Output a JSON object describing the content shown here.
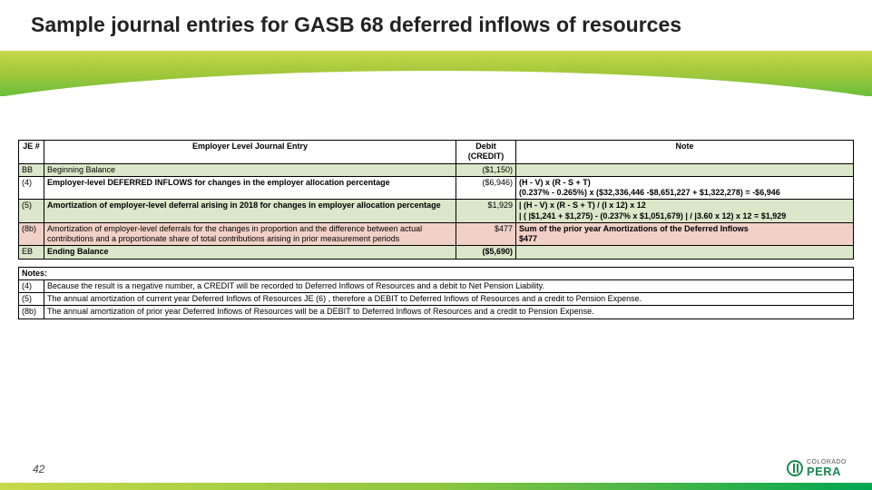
{
  "title": "Sample journal entries for GASB 68 deferred inflows of resources",
  "page_number": "42",
  "logo": {
    "line1": "COLORADO",
    "line2": "PERA"
  },
  "colors": {
    "row_green": "#dbe7c8",
    "row_peach": "#f1d1c7",
    "band_top": "#c6d94a",
    "band_bottom": "#6bbf3a",
    "logo_green": "#1a8a53"
  },
  "journal": {
    "headers": {
      "je": "JE #",
      "desc": "Employer Level Journal Entry",
      "amt": "Debit (CREDIT)",
      "note": "Note"
    },
    "rows": [
      {
        "je": "BB",
        "desc": "Beginning Balance",
        "amt": "($1,150)",
        "note": ""
      },
      {
        "je": "(4)",
        "desc": "Employer-level DEFERRED INFLOWS for changes in the employer allocation percentage",
        "amt": "($6,946)",
        "note": "(H - V) x (R - S + T)\n(0.237% - 0.265%) x ($32,336,446 -$8,651,227 + $1,322,278) = -$6,946"
      },
      {
        "je": "(5)",
        "desc": "Amortization of employer-level deferral arising in 2018 for changes in employer allocation percentage",
        "amt": "$1,929",
        "note": "| (H - V) x (R - S + T)  / (I x 12)  x 12\n| ( |$1,241 + $1,275) - (0.237% x $1,051,679) | / |3.60 x 12) x 12 = $1,929"
      },
      {
        "je": "(8b)",
        "desc": "Amortization of employer-level deferrals for the changes in proportion and the difference between actual contributions and a proportionate share of total contributions arising in prior measurement periods",
        "amt": "$477",
        "note": "Sum of the prior year Amortizations of the Deferred Inflows\n$477"
      },
      {
        "je": "EB",
        "desc": "Ending Balance",
        "amt": "($5,690)",
        "note": ""
      }
    ]
  },
  "notes": {
    "header": "Notes:",
    "rows": [
      {
        "je": "(4)",
        "text": "Because the result is a negative number, a CREDIT will be recorded to Deferred Inflows of Resources and a debit to Net Pension Liability."
      },
      {
        "je": "(5)",
        "text": "The annual amortization of current year Deferred Inflows of Resources JE (6) , therefore a DEBIT to Deferred Inflows of Resources and a credit to Pension Expense."
      },
      {
        "je": "(8b)",
        "text": "The annual amortization of prior year Deferred Inflows of Resources will be a DEBIT to Deferred Inflows of Resources and a credit to Pension Expense."
      }
    ]
  }
}
